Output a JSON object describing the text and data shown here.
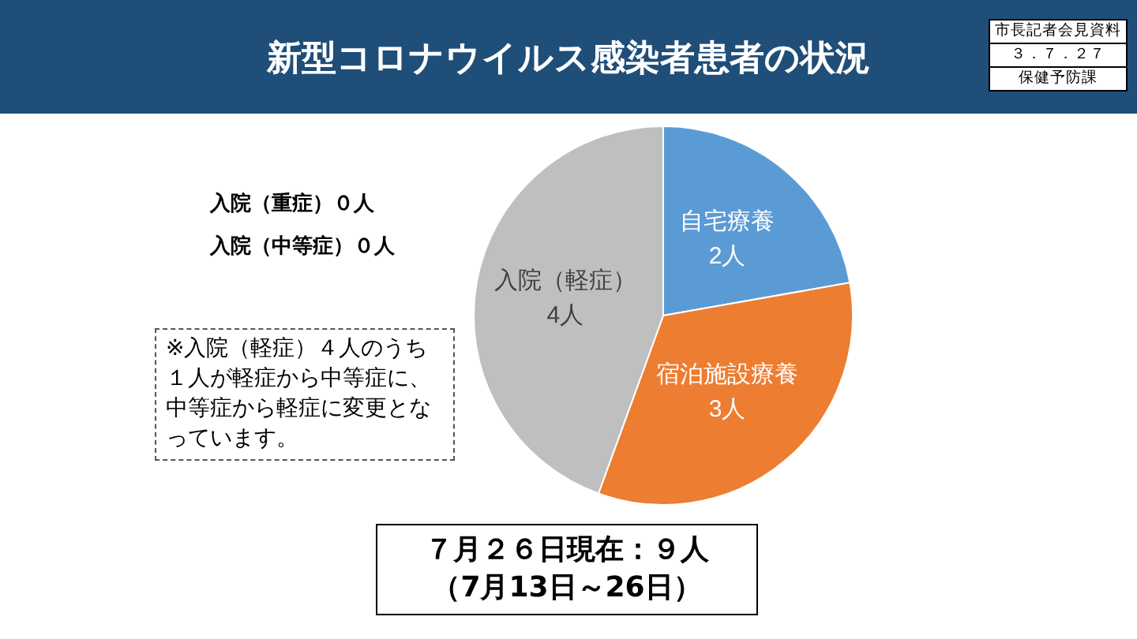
{
  "chart_data": {
    "type": "pie",
    "title": "新型コロナウイルス感染者患者の状況",
    "categories": [
      "自宅療養",
      "宿泊施設療養",
      "入院（軽症）"
    ],
    "values": [
      2,
      3,
      4
    ],
    "colors": [
      "#5b9bd5",
      "#ed7d31",
      "#bfbfbf"
    ],
    "value_labels": [
      "2人",
      "3人",
      "4人"
    ],
    "legend": false,
    "annotations": [
      "市長記者会見資料",
      "３．７．２７",
      "保健予防課",
      "入院（重症）０人",
      "入院（中等症）０人",
      "※入院（軽症）４人のうち１人が軽症から中等症に、中等症から軽症に変更となっています。",
      "７月２６日現在：９人",
      "（7月13日～26日）"
    ]
  }
}
